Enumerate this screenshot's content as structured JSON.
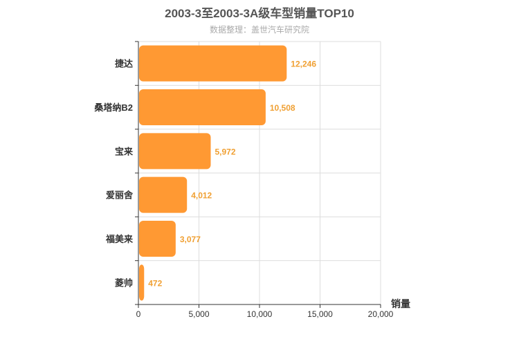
{
  "chart_data": {
    "type": "bar",
    "orientation": "horizontal",
    "title": "2003-3至2003-3A级车型销量TOP10",
    "subtitle": "数据整理：盖世汽车研究院",
    "categories": [
      "捷达",
      "桑塔纳B2",
      "宝来",
      "爱丽舍",
      "福美来",
      "菱帅"
    ],
    "values": [
      12246,
      10508,
      5972,
      4012,
      3077,
      472
    ],
    "value_labels": [
      "12,246",
      "10,508",
      "5,972",
      "4,012",
      "3,077",
      "472"
    ],
    "xlabel": "销量",
    "ylabel": "",
    "xlim": [
      0,
      20000
    ],
    "xticks": [
      0,
      5000,
      10000,
      15000,
      20000
    ],
    "xtick_labels": [
      "0",
      "5,000",
      "10,000",
      "15,000",
      "20,000"
    ],
    "grid": true,
    "bar_color": "#ff9933",
    "label_color": "#f0a033"
  }
}
